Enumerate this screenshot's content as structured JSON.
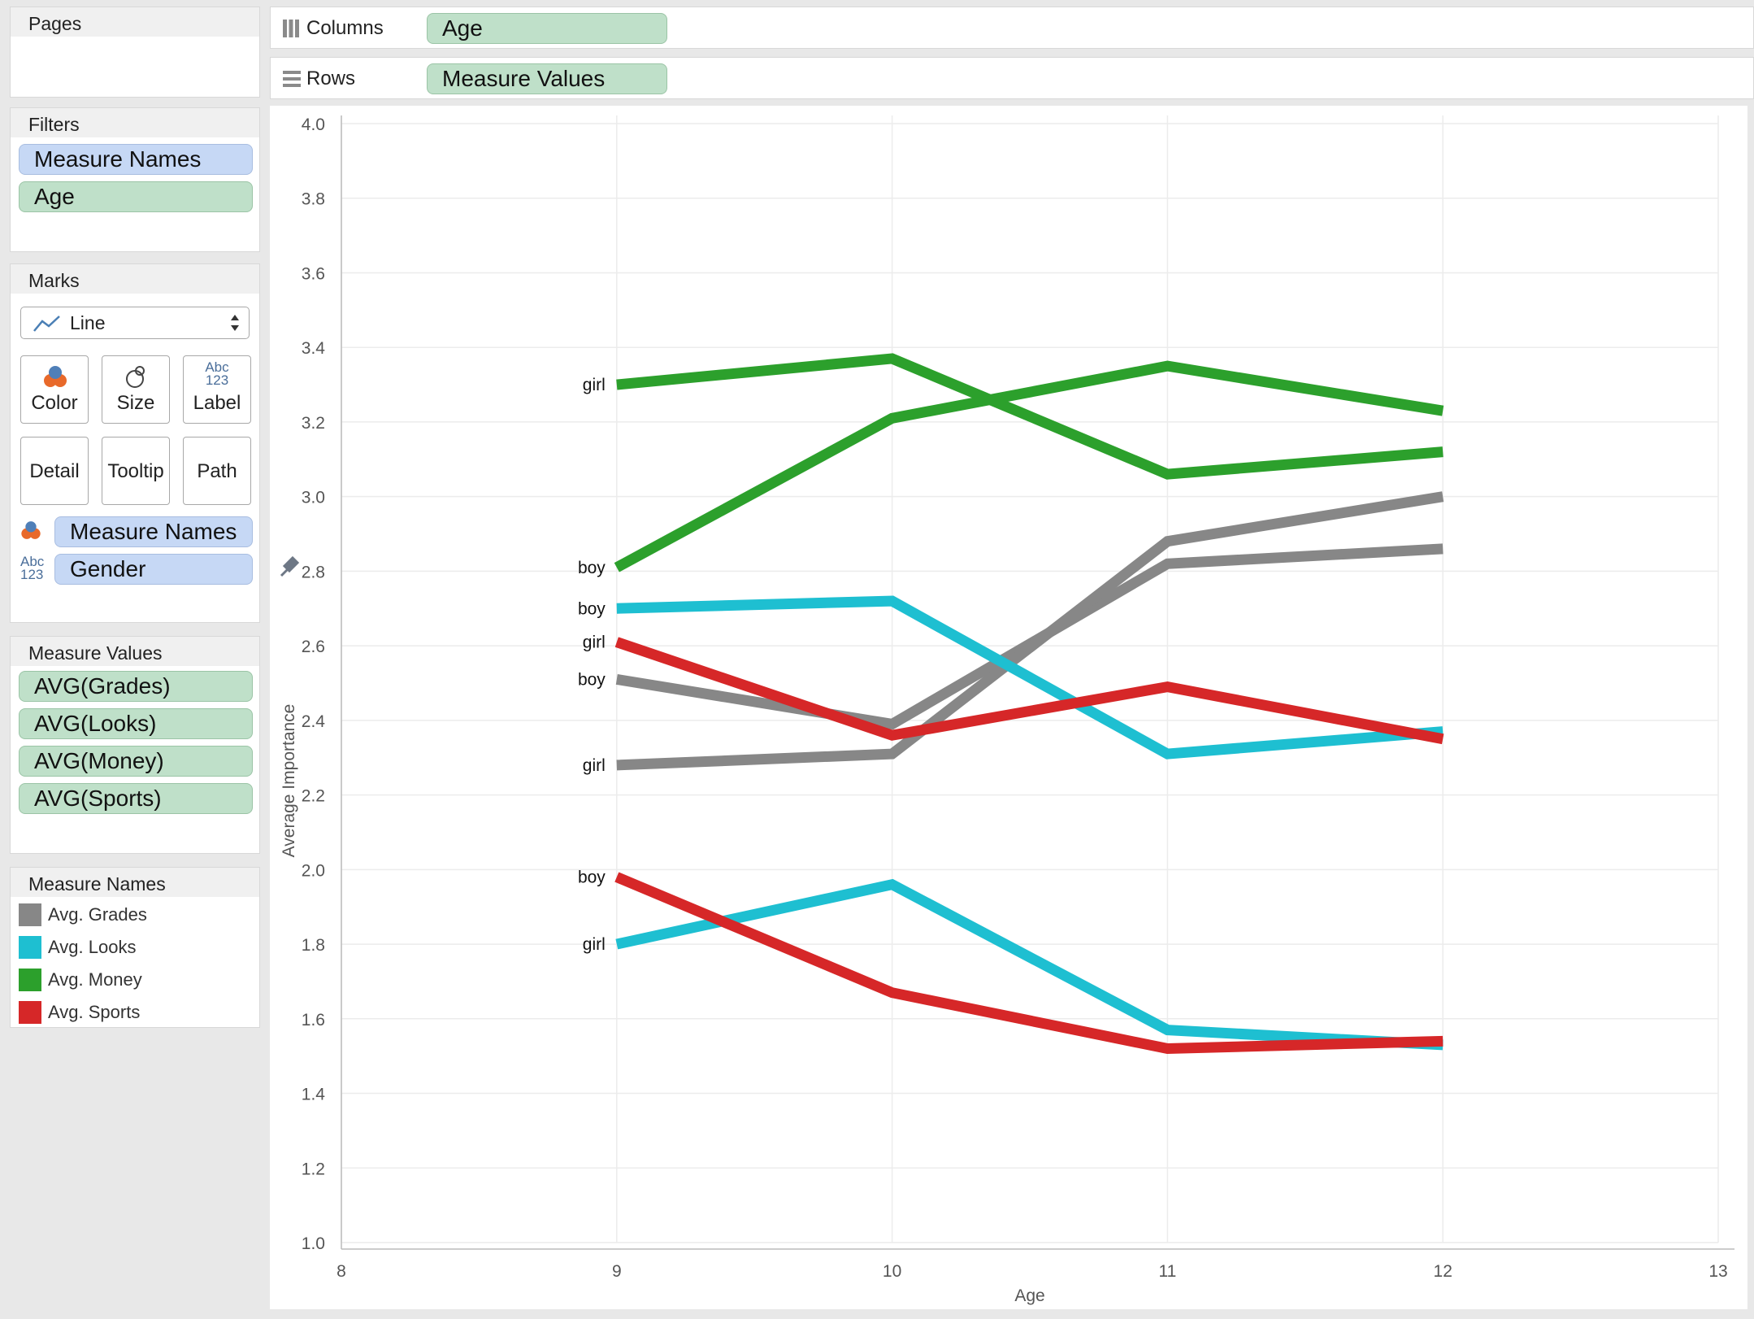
{
  "pages": {
    "title": "Pages"
  },
  "filters": {
    "title": "Filters",
    "items": [
      "Measure Names",
      "Age"
    ]
  },
  "marks": {
    "title": "Marks",
    "type_label": "Line",
    "buttons": {
      "color": "Color",
      "size": "Size",
      "label": "Label",
      "detail": "Detail",
      "tooltip": "Tooltip",
      "path": "Path"
    },
    "label_icon_text": "Abc\n123",
    "fields": [
      {
        "label": "Measure Names",
        "icon": "color-icon"
      },
      {
        "label": "Gender",
        "icon": "label-icon",
        "icon_text": "Abc\n123"
      }
    ]
  },
  "measure_values": {
    "title": "Measure Values",
    "items": [
      "AVG(Grades)",
      "AVG(Looks)",
      "AVG(Money)",
      "AVG(Sports)"
    ]
  },
  "legend": {
    "title": "Measure Names",
    "items": [
      {
        "label": "Avg. Grades",
        "color": "#878787"
      },
      {
        "label": "Avg. Looks",
        "color": "#1ebfd1"
      },
      {
        "label": "Avg. Money",
        "color": "#2ca02c"
      },
      {
        "label": "Avg. Sports",
        "color": "#d62728"
      }
    ]
  },
  "shelves": {
    "columns_label": "Columns",
    "columns_value": "Age",
    "rows_label": "Rows",
    "rows_value": "Measure Values"
  },
  "chart_data": {
    "type": "line",
    "xlabel": "Age",
    "ylabel": "Average Importance",
    "xlim": [
      8,
      13
    ],
    "ylim": [
      1.0,
      4.0
    ],
    "xticks": [
      8,
      9,
      10,
      11,
      12,
      13
    ],
    "yticks": [
      1.0,
      1.2,
      1.4,
      1.6,
      1.8,
      2.0,
      2.2,
      2.4,
      2.6,
      2.8,
      3.0,
      3.2,
      3.4,
      3.6,
      3.8,
      4.0
    ],
    "grid": true,
    "series": [
      {
        "measure": "Avg. Money",
        "gender": "girl",
        "color": "#2ca02c",
        "x": [
          9,
          10,
          11,
          12
        ],
        "y": [
          3.3,
          3.37,
          3.06,
          3.12
        ]
      },
      {
        "measure": "Avg. Money",
        "gender": "boy",
        "color": "#2ca02c",
        "x": [
          9,
          10,
          11,
          12
        ],
        "y": [
          2.81,
          3.21,
          3.35,
          3.23
        ]
      },
      {
        "measure": "Avg. Grades",
        "gender": "boy",
        "color": "#878787",
        "x": [
          9,
          10,
          11,
          12
        ],
        "y": [
          2.51,
          2.39,
          2.82,
          2.86
        ]
      },
      {
        "measure": "Avg. Grades",
        "gender": "girl",
        "color": "#878787",
        "x": [
          9,
          10,
          11,
          12
        ],
        "y": [
          2.28,
          2.31,
          2.88,
          3.0
        ]
      },
      {
        "measure": "Avg. Looks",
        "gender": "boy",
        "color": "#1ebfd1",
        "x": [
          9,
          10,
          11,
          12
        ],
        "y": [
          2.7,
          2.72,
          2.31,
          2.37
        ]
      },
      {
        "measure": "Avg. Looks",
        "gender": "girl",
        "color": "#1ebfd1",
        "x": [
          9,
          10,
          11,
          12
        ],
        "y": [
          1.8,
          1.96,
          1.57,
          1.53
        ]
      },
      {
        "measure": "Avg. Sports",
        "gender": "girl",
        "color": "#d62728",
        "x": [
          9,
          10,
          11,
          12
        ],
        "y": [
          2.61,
          2.36,
          2.49,
          2.35
        ]
      },
      {
        "measure": "Avg. Sports",
        "gender": "boy",
        "color": "#d62728",
        "x": [
          9,
          10,
          11,
          12
        ],
        "y": [
          1.98,
          1.67,
          1.52,
          1.54
        ]
      }
    ]
  }
}
